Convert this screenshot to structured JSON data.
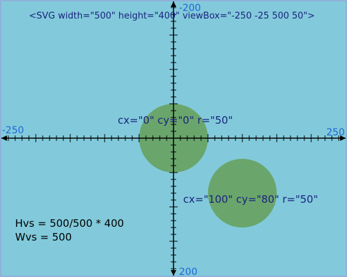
{
  "svg_tag": "<SVG width=\"500\" height=\"400\" viewBox=\"-250 -25 500 50\">",
  "axes": {
    "x_min_label": "-250",
    "x_max_label": "250",
    "y_min_label": "-200",
    "y_max_label": "200"
  },
  "circles": [
    {
      "label": "cx=\"0\" cy=\"0\" r=\"50\"",
      "cx": 0,
      "cy": 0,
      "r": 50
    },
    {
      "label": "cx=\"100\" cy=\"80\" r=\"50\"",
      "cx": 100,
      "cy": 80,
      "r": 50
    }
  ],
  "formulas": {
    "hvs": "Hvs = 500/500 * 400",
    "wvs": "Wvs = 500"
  },
  "colors": {
    "background": "#82cadb",
    "circle_fill": "#6aa66c",
    "axis": "#000000",
    "axis_label": "#1e66d6",
    "caption": "#1a237e"
  }
}
